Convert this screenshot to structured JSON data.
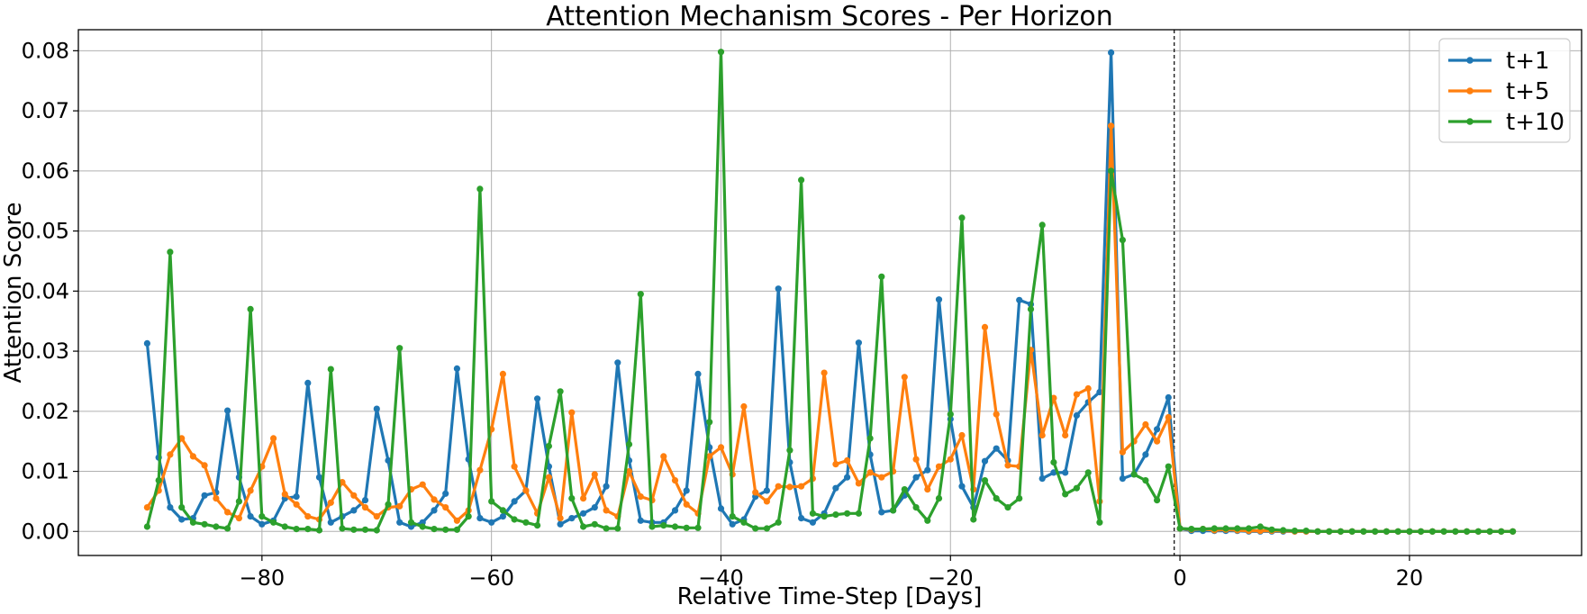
{
  "chart_data": {
    "type": "line",
    "title": "Attention Mechanism Scores - Per Horizon",
    "xlabel": "Relative Time-Step [Days]",
    "ylabel": "Attention Score",
    "xlim": [
      -96,
      35
    ],
    "ylim": [
      -0.004,
      0.0835
    ],
    "xticks": [
      -80,
      -60,
      -40,
      -20,
      0,
      20
    ],
    "xtick_labels": [
      "−80",
      "−60",
      "−40",
      "−20",
      "0",
      "20"
    ],
    "yticks": [
      0.0,
      0.01,
      0.02,
      0.03,
      0.04,
      0.05,
      0.06,
      0.07,
      0.08
    ],
    "ytick_labels": [
      "0.00",
      "0.01",
      "0.02",
      "0.03",
      "0.04",
      "0.05",
      "0.06",
      "0.07",
      "0.08"
    ],
    "grid": true,
    "legend_position": "top-right",
    "vline_x": -0.5,
    "x": [
      -90,
      -89,
      -88,
      -87,
      -86,
      -85,
      -84,
      -83,
      -82,
      -81,
      -80,
      -79,
      -78,
      -77,
      -76,
      -75,
      -74,
      -73,
      -72,
      -71,
      -70,
      -69,
      -68,
      -67,
      -66,
      -65,
      -64,
      -63,
      -62,
      -61,
      -60,
      -59,
      -58,
      -57,
      -56,
      -55,
      -54,
      -53,
      -52,
      -51,
      -50,
      -49,
      -48,
      -47,
      -46,
      -45,
      -44,
      -43,
      -42,
      -41,
      -40,
      -39,
      -38,
      -37,
      -36,
      -35,
      -34,
      -33,
      -32,
      -31,
      -30,
      -29,
      -28,
      -27,
      -26,
      -25,
      -24,
      -23,
      -22,
      -21,
      -20,
      -19,
      -18,
      -17,
      -16,
      -15,
      -14,
      -13,
      -12,
      -11,
      -10,
      -9,
      -8,
      -7,
      -6,
      -5,
      -4,
      -3,
      -2,
      -1,
      0,
      1,
      2,
      3,
      4,
      5,
      6,
      7,
      8,
      9,
      10,
      11,
      12,
      13,
      14,
      15,
      16,
      17,
      18,
      19,
      20,
      21,
      22,
      23,
      24,
      25,
      26,
      27,
      28,
      29
    ],
    "series": [
      {
        "name": "t+1",
        "color": "#1f77b4",
        "values": [
          0.0313,
          0.0123,
          0.004,
          0.002,
          0.0022,
          0.006,
          0.0065,
          0.0201,
          0.009,
          0.0025,
          0.0012,
          0.0018,
          0.0055,
          0.0058,
          0.0247,
          0.009,
          0.0015,
          0.0025,
          0.0035,
          0.0052,
          0.0204,
          0.0118,
          0.0015,
          0.0008,
          0.0015,
          0.0035,
          0.0063,
          0.0271,
          0.012,
          0.0022,
          0.0015,
          0.0025,
          0.005,
          0.0068,
          0.0221,
          0.0108,
          0.0012,
          0.0022,
          0.003,
          0.004,
          0.0075,
          0.0281,
          0.0118,
          0.0018,
          0.0015,
          0.0015,
          0.0035,
          0.0068,
          0.0262,
          0.014,
          0.0038,
          0.0012,
          0.002,
          0.0058,
          0.0068,
          0.0404,
          0.0115,
          0.0022,
          0.0015,
          0.003,
          0.0072,
          0.009,
          0.0314,
          0.0128,
          0.0032,
          0.0035,
          0.006,
          0.009,
          0.0102,
          0.0386,
          0.0187,
          0.0075,
          0.004,
          0.0117,
          0.0138,
          0.0118,
          0.0385,
          0.0378,
          0.0088,
          0.0098,
          0.0098,
          0.0193,
          0.0215,
          0.0232,
          0.0797,
          0.0088,
          0.0095,
          0.0128,
          0.017,
          0.0223,
          0.0005,
          0.0001,
          0.0001,
          0.0001,
          0.0001,
          0.0001,
          0.0,
          0.0,
          0.0,
          0.0,
          0.0,
          0.0,
          0.0,
          0.0,
          0.0,
          0.0,
          0.0,
          0.0,
          0.0,
          0.0,
          0.0,
          0.0,
          0.0,
          0.0,
          0.0,
          0.0,
          0.0,
          0.0,
          0.0,
          0.0
        ]
      },
      {
        "name": "t+5",
        "color": "#ff7f0e",
        "values": [
          0.004,
          0.0068,
          0.0128,
          0.0155,
          0.0125,
          0.011,
          0.0055,
          0.0032,
          0.0022,
          0.0068,
          0.0108,
          0.0155,
          0.0062,
          0.0045,
          0.0025,
          0.002,
          0.0048,
          0.0082,
          0.006,
          0.004,
          0.0025,
          0.004,
          0.0042,
          0.007,
          0.0078,
          0.0053,
          0.004,
          0.0018,
          0.0035,
          0.0102,
          0.017,
          0.0262,
          0.0108,
          0.0068,
          0.003,
          0.009,
          0.0022,
          0.0198,
          0.0055,
          0.0095,
          0.0035,
          0.0025,
          0.01,
          0.0058,
          0.0052,
          0.0125,
          0.0085,
          0.0045,
          0.003,
          0.0125,
          0.014,
          0.0095,
          0.0208,
          0.0065,
          0.005,
          0.0075,
          0.0074,
          0.0075,
          0.0088,
          0.0264,
          0.0112,
          0.0118,
          0.008,
          0.0098,
          0.009,
          0.01,
          0.0257,
          0.012,
          0.007,
          0.0108,
          0.012,
          0.016,
          0.007,
          0.034,
          0.0195,
          0.011,
          0.0108,
          0.0302,
          0.016,
          0.0222,
          0.016,
          0.0228,
          0.0238,
          0.005,
          0.0675,
          0.0132,
          0.015,
          0.0178,
          0.015,
          0.019,
          0.0005,
          0.0003,
          0.0004,
          0.0002,
          0.0003,
          0.0002,
          0.0001,
          0.0001,
          0.0001,
          0.0001,
          0.0,
          0.0,
          0.0,
          0.0,
          0.0,
          0.0,
          0.0,
          0.0,
          0.0,
          0.0,
          0.0,
          0.0,
          0.0,
          0.0,
          0.0,
          0.0,
          0.0,
          0.0,
          0.0,
          0.0
        ]
      },
      {
        "name": "t+10",
        "color": "#2ca02c",
        "values": [
          0.0008,
          0.0085,
          0.0465,
          0.004,
          0.0015,
          0.0012,
          0.0008,
          0.0005,
          0.005,
          0.037,
          0.0025,
          0.0015,
          0.0008,
          0.0004,
          0.0004,
          0.0002,
          0.027,
          0.0005,
          0.0003,
          0.0003,
          0.0002,
          0.0045,
          0.0305,
          0.0015,
          0.0008,
          0.0004,
          0.0003,
          0.0003,
          0.0025,
          0.057,
          0.005,
          0.0035,
          0.002,
          0.0015,
          0.001,
          0.0142,
          0.0233,
          0.0055,
          0.0008,
          0.0012,
          0.0005,
          0.0005,
          0.0145,
          0.0395,
          0.0008,
          0.001,
          0.0008,
          0.0006,
          0.0006,
          0.0182,
          0.0798,
          0.0025,
          0.0015,
          0.0005,
          0.0005,
          0.0015,
          0.0135,
          0.0585,
          0.003,
          0.0025,
          0.0028,
          0.003,
          0.003,
          0.0155,
          0.0424,
          0.0035,
          0.007,
          0.004,
          0.0018,
          0.0055,
          0.0195,
          0.0522,
          0.002,
          0.0085,
          0.0055,
          0.004,
          0.0055,
          0.037,
          0.051,
          0.0115,
          0.0062,
          0.0072,
          0.0098,
          0.0015,
          0.06,
          0.0485,
          0.0095,
          0.0085,
          0.0052,
          0.0108,
          0.0005,
          0.0004,
          0.0004,
          0.0005,
          0.0005,
          0.0005,
          0.0005,
          0.0008,
          0.0003,
          0.0002,
          0.0001,
          0.0001,
          0.0,
          0.0,
          0.0,
          0.0,
          0.0,
          0.0,
          0.0,
          0.0,
          0.0,
          0.0,
          0.0,
          0.0,
          0.0,
          0.0,
          0.0,
          0.0,
          0.0,
          0.0
        ]
      }
    ]
  }
}
